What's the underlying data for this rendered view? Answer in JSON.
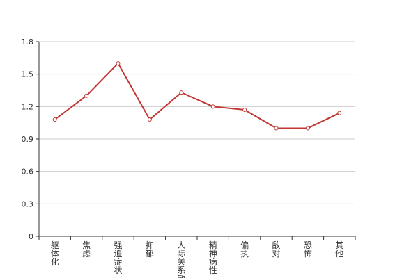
{
  "chart_data": {
    "type": "line",
    "title": "",
    "xlabel": "",
    "ylabel": "",
    "categories": [
      "躯体化",
      "焦虑",
      "强迫症状",
      "抑郁",
      "人际关系敏感",
      "精神病性",
      "偏执",
      "敌对",
      "恐怖",
      "其他"
    ],
    "series": [
      {
        "values": [
          1.08,
          1.3,
          1.6,
          1.08,
          1.33,
          1.2,
          1.17,
          1.0,
          1.0,
          1.14
        ]
      }
    ],
    "ylim": [
      0,
      1.8
    ],
    "yticks": [
      "0",
      "0.3",
      "0.6",
      "0.9",
      "1.2",
      "1.5",
      "1.8"
    ],
    "grid": true,
    "legend": "none",
    "colors": {
      "line": "#c23531",
      "grid": "#cccccc",
      "axis": "#333333",
      "marker_fill": "#ffffff"
    }
  }
}
